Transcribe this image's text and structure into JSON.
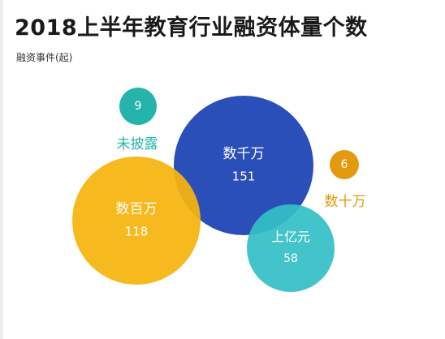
{
  "chart_data": {
    "type": "bubble",
    "title": "2018上半年教育行业融资体量个数",
    "subtitle": "融资事件(起)",
    "bubbles": [
      {
        "label": "未披露",
        "value": 9,
        "color": "#25b4ac"
      },
      {
        "label": "数千万",
        "value": 151,
        "color": "#2b4fb8"
      },
      {
        "label": "数百万",
        "value": 118,
        "color": "#f5b50e"
      },
      {
        "label": "数十万",
        "value": 6,
        "color": "#e49a0e"
      },
      {
        "label": "上亿元",
        "value": 58,
        "color": "#34c0c6"
      }
    ]
  }
}
